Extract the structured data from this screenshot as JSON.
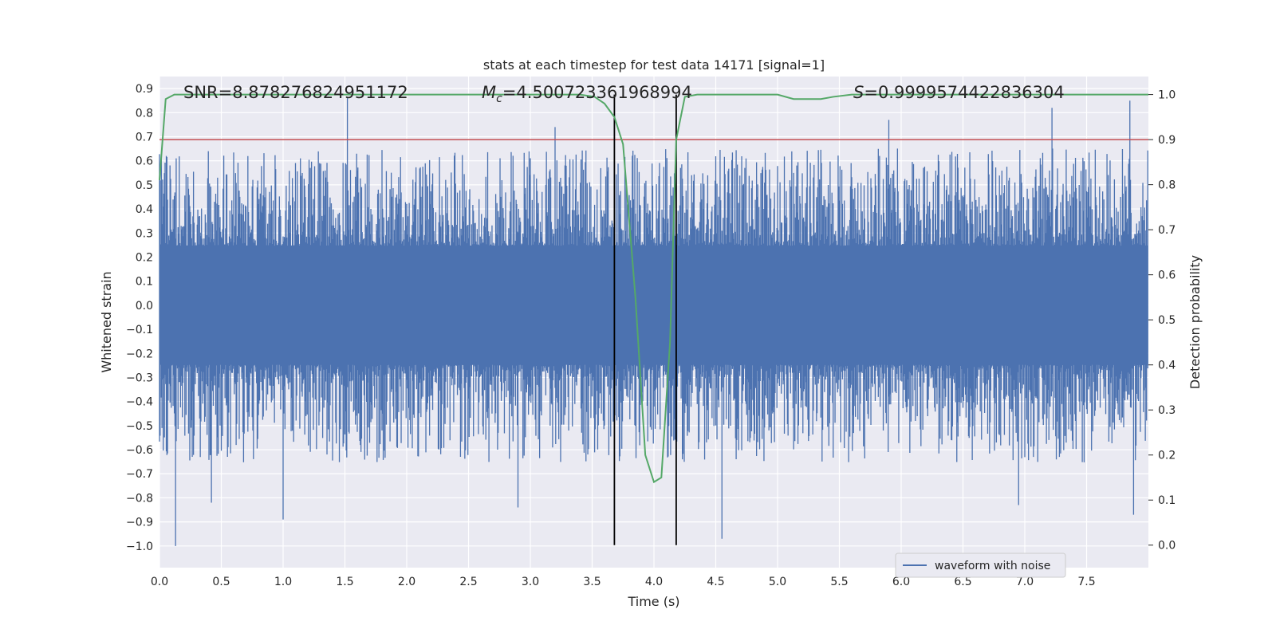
{
  "chart_data": {
    "type": "line",
    "title": "stats at each timestep for test data 14171 [signal=1]",
    "xlabel": "Time (s)",
    "ylabel_left": "Whitened strain",
    "ylabel_right": "Detection probability",
    "xlim": [
      0.0,
      8.0
    ],
    "ylim_left": [
      -1.09,
      0.95
    ],
    "ylim_right": [
      -0.05,
      1.04
    ],
    "x_ticks": [
      "0.0",
      "0.5",
      "1.0",
      "1.5",
      "2.0",
      "2.5",
      "3.0",
      "3.5",
      "4.0",
      "4.5",
      "5.0",
      "5.5",
      "6.0",
      "6.5",
      "7.0",
      "7.5"
    ],
    "y_ticks_left": [
      "0.9",
      "0.8",
      "0.7",
      "0.6",
      "0.5",
      "0.4",
      "0.3",
      "0.2",
      "0.1",
      "0.0",
      "−0.1",
      "−0.2",
      "−0.3",
      "−0.4",
      "−0.5",
      "−0.6",
      "−0.7",
      "−0.8",
      "−0.9",
      "−1.0"
    ],
    "y_ticks_right": [
      "1.0",
      "0.9",
      "0.8",
      "0.7",
      "0.6",
      "0.5",
      "0.4",
      "0.3",
      "0.2",
      "0.1",
      "0.0"
    ],
    "annotations": {
      "snr": "SNR=8.878276824951172",
      "mc_symbol": "M",
      "mc_sub": "c",
      "mc_value": "=4.500723361968994",
      "s_symbol": "S",
      "s_value": "=0.9999574422836304"
    },
    "threshold": {
      "value": 0.9,
      "axis": "right",
      "color": "#c44e52"
    },
    "vertical_lines": [
      3.68,
      4.18
    ],
    "waveform": {
      "name": "waveform with noise",
      "color": "#4c72b0",
      "typical_amplitude": 0.45,
      "peaks": [
        {
          "t": 0.13,
          "v": -1.0
        },
        {
          "t": 0.42,
          "v": -0.82
        },
        {
          "t": 1.0,
          "v": -0.89
        },
        {
          "t": 1.52,
          "v": 0.86
        },
        {
          "t": 2.9,
          "v": -0.84
        },
        {
          "t": 4.55,
          "v": -0.97
        },
        {
          "t": 7.22,
          "v": 0.82
        },
        {
          "t": 7.85,
          "v": 0.85
        },
        {
          "t": 7.88,
          "v": -0.87
        },
        {
          "t": 6.95,
          "v": -0.83
        },
        {
          "t": 3.2,
          "v": 0.74
        },
        {
          "t": 5.9,
          "v": 0.77
        }
      ]
    },
    "probability": {
      "name": "detection probability",
      "color": "#55a868",
      "x": [
        0.0,
        0.05,
        0.12,
        0.5,
        1.0,
        2.0,
        3.0,
        3.4,
        3.52,
        3.6,
        3.68,
        3.75,
        3.85,
        3.93,
        4.0,
        4.06,
        4.13,
        4.18,
        4.25,
        4.35,
        4.6,
        5.0,
        5.13,
        5.3,
        5.35,
        5.45,
        5.6,
        6.0,
        7.0,
        8.0
      ],
      "y": [
        0.81,
        0.99,
        1.0,
        1.0,
        1.0,
        1.0,
        1.0,
        1.0,
        0.995,
        0.98,
        0.95,
        0.89,
        0.55,
        0.2,
        0.14,
        0.15,
        0.45,
        0.9,
        0.995,
        1.0,
        1.0,
        1.0,
        0.99,
        0.99,
        0.99,
        0.995,
        1.0,
        1.0,
        1.0,
        1.0
      ]
    },
    "legend": {
      "label": "waveform with noise",
      "placement": "lower-right"
    }
  }
}
